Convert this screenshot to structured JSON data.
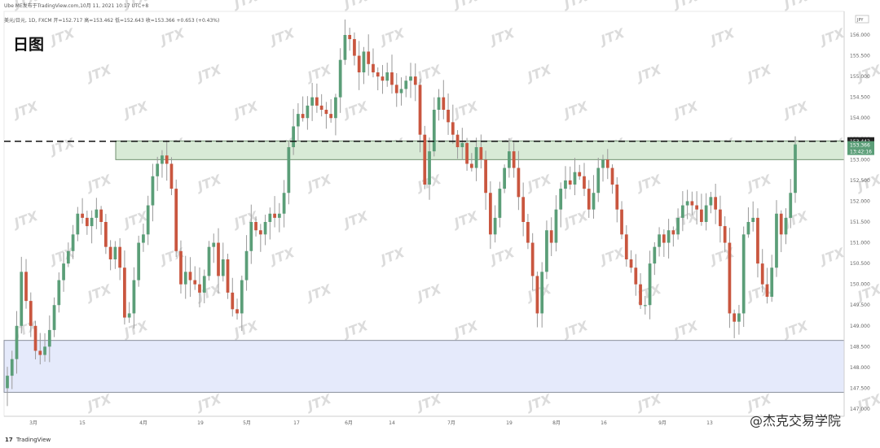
{
  "header": {
    "title": "Ube ME发布于TradingView.com,10月 11, 2021 10:17 UTC+8",
    "symbol_line": "美元/日元, 1D, FXCM 开=152.717 高=153.462 低=152.643 收=153.366 +0.653 (+0.43%)",
    "chart_label": "日图"
  },
  "watermark": "JTX",
  "footer": {
    "logo_text": "17",
    "brand": "TradingView",
    "social": "@杰克交易学院"
  },
  "chart_data": {
    "type": "candlestick",
    "currency_badge": "JPY",
    "ylim": [
      147.0,
      156.5
    ],
    "y_ticks": [
      "147.000",
      "147.500",
      "148.000",
      "148.500",
      "149.000",
      "149.500",
      "150.000",
      "150.500",
      "151.000",
      "151.500",
      "152.000",
      "152.500",
      "153.000",
      "153.500",
      "154.000",
      "154.500",
      "155.000",
      "155.500",
      "156.000"
    ],
    "x_ticks": [
      "3月",
      "15",
      "4月",
      "19",
      "5月",
      "17",
      "6月",
      "14",
      "7月",
      "19",
      "8月",
      "16",
      "9月",
      "13"
    ],
    "price_badges": {
      "high_level": "153.442",
      "last_price": "153.366",
      "countdown": "13:42:16"
    },
    "resistance_dashed_level": 153.442,
    "resistance_zone": [
      153.0,
      153.45
    ],
    "support_zone": [
      147.4,
      148.65
    ],
    "colors": {
      "up": "#5b9e78",
      "down": "#c9563f",
      "resistance": "#d8ead6",
      "support": "#e5eafb"
    },
    "closes": [
      147.8,
      148.2,
      149.0,
      150.3,
      149.6,
      149.0,
      148.4,
      148.3,
      148.5,
      148.9,
      149.5,
      150.1,
      150.5,
      150.8,
      151.2,
      151.7,
      151.6,
      151.4,
      151.6,
      151.8,
      151.5,
      150.9,
      150.6,
      150.9,
      150.4,
      149.2,
      149.3,
      150.1,
      151.0,
      151.2,
      151.9,
      152.6,
      152.9,
      153.1,
      152.9,
      152.3,
      150.8,
      150.0,
      150.3,
      150.1,
      150.0,
      149.8,
      150.2,
      150.9,
      151.0,
      150.2,
      150.6,
      149.8,
      149.4,
      149.3,
      150.1,
      150.8,
      151.5,
      151.3,
      151.2,
      151.5,
      151.7,
      151.6,
      151.7,
      152.2,
      153.3,
      153.8,
      154.1,
      154.0,
      154.3,
      154.5,
      154.3,
      154.2,
      154.1,
      154.0,
      154.5,
      155.4,
      156.0,
      155.9,
      155.5,
      155.1,
      155.6,
      155.3,
      155.1,
      155.0,
      154.9,
      155.1,
      154.8,
      154.6,
      154.7,
      154.9,
      155.0,
      154.8,
      153.6,
      152.4,
      153.2,
      154.2,
      154.5,
      154.2,
      153.9,
      153.6,
      153.3,
      153.4,
      152.9,
      152.8,
      153.3,
      153.0,
      152.2,
      151.2,
      151.6,
      152.3,
      152.8,
      153.2,
      152.8,
      152.1,
      151.5,
      151.0,
      150.2,
      149.3,
      150.3,
      151.3,
      151.0,
      151.8,
      152.3,
      152.5,
      152.4,
      152.7,
      152.6,
      152.3,
      151.8,
      152.2,
      152.8,
      153.0,
      152.8,
      152.4,
      151.8,
      151.2,
      150.6,
      150.4,
      150.0,
      149.5,
      149.5,
      150.5,
      150.9,
      151.2,
      151.0,
      151.3,
      151.2,
      151.6,
      151.9,
      152.0,
      151.9,
      151.8,
      151.5,
      151.9,
      152.1,
      151.8,
      151.4,
      151.0,
      149.3,
      149.1,
      149.3,
      151.2,
      151.5,
      151.6,
      150.5,
      150.0,
      149.7,
      150.4,
      151.7,
      151.2,
      151.6,
      152.2,
      153.366
    ]
  }
}
